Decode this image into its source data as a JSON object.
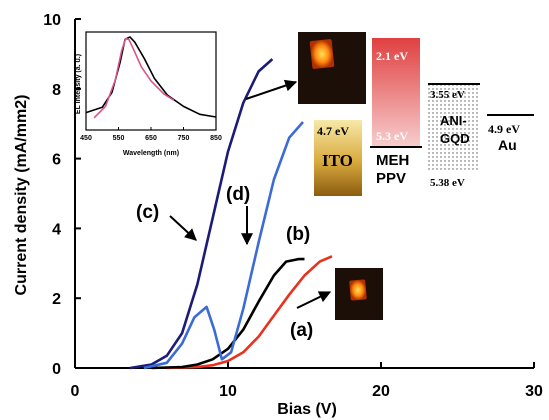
{
  "chart_data": [
    {
      "type": "line",
      "title": "",
      "xlabel": "Bias (V)",
      "ylabel": "Current density (mA/mm2)",
      "xlim": [
        0,
        30
      ],
      "ylim": [
        0,
        10
      ],
      "xticks": [
        "0",
        "10",
        "20",
        "30"
      ],
      "yticks": [
        "0",
        "2",
        "4",
        "6",
        "8",
        "10"
      ],
      "grid": false,
      "series": [
        {
          "name": "(a)",
          "color": "#e8321e",
          "x": [
            6,
            8,
            9,
            10,
            11,
            12,
            13,
            14,
            15,
            16,
            16.8
          ],
          "y": [
            0,
            0.03,
            0.08,
            0.2,
            0.45,
            0.9,
            1.5,
            2.1,
            2.65,
            3.05,
            3.2
          ]
        },
        {
          "name": "(b)",
          "color": "#000000",
          "x": [
            5,
            7,
            8,
            9,
            10,
            11,
            12,
            13,
            13.8,
            14.6,
            15
          ],
          "y": [
            0,
            0.03,
            0.1,
            0.25,
            0.55,
            1.1,
            1.9,
            2.65,
            3.05,
            3.12,
            3.12
          ]
        },
        {
          "name": "(c)",
          "color": "#1c1c78",
          "x": [
            3.6,
            5,
            6,
            7,
            8,
            9,
            10,
            11,
            12,
            12.9
          ],
          "y": [
            0,
            0.1,
            0.35,
            1.0,
            2.4,
            4.3,
            6.2,
            7.6,
            8.5,
            8.85
          ]
        },
        {
          "name": "(d)",
          "color": "#3b6bd6",
          "x": [
            4.5,
            6,
            7,
            7.8,
            8.6,
            9.1,
            9.6,
            10.2,
            11,
            12,
            13,
            14,
            14.9
          ],
          "y": [
            0,
            0.15,
            0.7,
            1.45,
            1.75,
            1.1,
            0.25,
            0.45,
            1.7,
            3.6,
            5.4,
            6.6,
            7.05
          ]
        }
      ],
      "annotations": [
        "(a)",
        "(b)",
        "(c)",
        "(d)"
      ]
    },
    {
      "type": "line",
      "title": "",
      "xlabel": "Wavelength (nm)",
      "ylabel": "EL Intensity (a. u.)",
      "xlim": [
        450,
        850
      ],
      "ylim": [
        0,
        1
      ],
      "xticks": [
        "450",
        "550",
        "650",
        "750",
        "850"
      ],
      "series": [
        {
          "color": "#000000",
          "x": [
            450,
            500,
            530,
            555,
            570,
            585,
            600,
            630,
            660,
            700,
            750,
            800,
            850
          ],
          "y": [
            0.13,
            0.19,
            0.36,
            0.7,
            0.96,
            0.99,
            0.93,
            0.74,
            0.52,
            0.33,
            0.2,
            0.11,
            0.08
          ]
        },
        {
          "color": "#d9548a",
          "x": [
            475,
            510,
            540,
            560,
            572,
            582,
            595,
            620,
            650,
            690,
            720
          ],
          "y": [
            0.07,
            0.2,
            0.5,
            0.84,
            0.97,
            0.96,
            0.86,
            0.65,
            0.49,
            0.34,
            0.27
          ]
        }
      ]
    }
  ],
  "energy_levels": {
    "ito": {
      "top": "4.7 eV",
      "name": "ITO"
    },
    "meh_ppv": {
      "top": "2.1 eV",
      "bottom": "5.3 eV",
      "name_line1": "MEH",
      "name_line2": "PPV"
    },
    "ani_gqd": {
      "top": "3.55 eV",
      "bottom": "5.38 eV",
      "name_line1": "ANI-",
      "name_line2": "GQD"
    },
    "au": {
      "top": "4.9 eV",
      "name": "Au"
    }
  }
}
